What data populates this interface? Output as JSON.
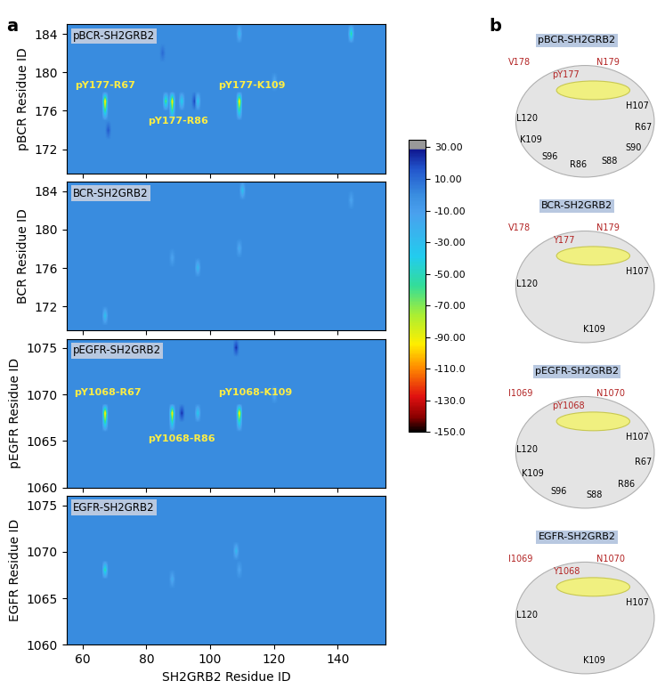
{
  "panel_labels": [
    "a",
    "b"
  ],
  "chart_data": [
    {
      "type": "heatmap",
      "title": "pBCR-SH2GRB2",
      "y_label": "pBCR Residue ID",
      "xlim": [
        55,
        155
      ],
      "xticks": [
        60,
        80,
        100,
        120,
        140
      ],
      "ylim": [
        169.5,
        185
      ],
      "yticks": [
        172,
        176,
        180,
        184
      ],
      "tick_labels": "y",
      "background": 0,
      "cells": [
        {
          "x": 67,
          "y": 177,
          "value": -105
        },
        {
          "x": 67,
          "y": 176,
          "value": -60
        },
        {
          "x": 68,
          "y": 174,
          "value": 15
        },
        {
          "x": 86,
          "y": 177,
          "value": -70
        },
        {
          "x": 88,
          "y": 177,
          "value": -100
        },
        {
          "x": 88,
          "y": 176,
          "value": -55
        },
        {
          "x": 91,
          "y": 177,
          "value": -45
        },
        {
          "x": 95,
          "y": 177,
          "value": 20
        },
        {
          "x": 96,
          "y": 177,
          "value": -40
        },
        {
          "x": 109,
          "y": 177,
          "value": -105
        },
        {
          "x": 109,
          "y": 176,
          "value": -55
        },
        {
          "x": 109,
          "y": 184,
          "value": -30
        },
        {
          "x": 144,
          "y": 184,
          "value": -60
        },
        {
          "x": 120,
          "y": 179,
          "value": -20
        },
        {
          "x": 85,
          "y": 182,
          "value": 10
        }
      ],
      "annotations": [
        {
          "text": "pY177-R67",
          "x": 67,
          "y": 178.6
        },
        {
          "text": "pY177-R86",
          "x": 90,
          "y": 174.9
        },
        {
          "text": "pY177-K109",
          "x": 113,
          "y": 178.6
        }
      ]
    },
    {
      "type": "heatmap",
      "title": "BCR-SH2GRB2",
      "y_label": "BCR Residue ID",
      "xlim": [
        55,
        155
      ],
      "xticks": [
        60,
        80,
        100,
        120,
        140
      ],
      "ylim": [
        169.5,
        185
      ],
      "yticks": [
        172,
        176,
        180,
        184
      ],
      "tick_labels": "y",
      "background": 0,
      "cells": [
        {
          "x": 110,
          "y": 184,
          "value": -35
        },
        {
          "x": 96,
          "y": 176,
          "value": -30
        },
        {
          "x": 67,
          "y": 171,
          "value": -35
        },
        {
          "x": 109,
          "y": 178,
          "value": -20
        },
        {
          "x": 88,
          "y": 177,
          "value": -15
        },
        {
          "x": 144,
          "y": 183,
          "value": -15
        }
      ]
    },
    {
      "type": "heatmap",
      "title": "pEGFR-SH2GRB2",
      "y_label": "pEGFR Residue ID",
      "xlim": [
        55,
        155
      ],
      "xticks": [
        60,
        80,
        100,
        120,
        140
      ],
      "ylim": [
        1060,
        1076
      ],
      "yticks": [
        1060,
        1065,
        1070,
        1075
      ],
      "tick_labels": "y",
      "background": 0,
      "cells": [
        {
          "x": 67,
          "y": 1068,
          "value": -105
        },
        {
          "x": 67,
          "y": 1067,
          "value": -60
        },
        {
          "x": 88,
          "y": 1068,
          "value": -100
        },
        {
          "x": 88,
          "y": 1067,
          "value": -50
        },
        {
          "x": 91,
          "y": 1068,
          "value": 25
        },
        {
          "x": 96,
          "y": 1068,
          "value": -40
        },
        {
          "x": 109,
          "y": 1068,
          "value": -105
        },
        {
          "x": 109,
          "y": 1067,
          "value": -50
        },
        {
          "x": 108,
          "y": 1075,
          "value": 25
        },
        {
          "x": 120,
          "y": 1070,
          "value": -20
        }
      ],
      "annotations": [
        {
          "text": "pY1068-R67",
          "x": 68,
          "y": 1070.2
        },
        {
          "text": "pY1068-R86",
          "x": 91,
          "y": 1065.2
        },
        {
          "text": "pY1068-K109",
          "x": 114,
          "y": 1070.2
        }
      ]
    },
    {
      "type": "heatmap",
      "title": "EGFR-SH2GRB2",
      "y_label": "EGFR Residue ID",
      "x_label": "SH2GRB2 Residue ID",
      "xlim": [
        55,
        155
      ],
      "xticks": [
        60,
        80,
        100,
        120,
        140
      ],
      "ylim": [
        1060,
        1076
      ],
      "yticks": [
        1060,
        1065,
        1070,
        1075
      ],
      "background": 0,
      "cells": [
        {
          "x": 67,
          "y": 1068,
          "value": -60
        },
        {
          "x": 108,
          "y": 1070,
          "value": -30
        },
        {
          "x": 88,
          "y": 1067,
          "value": -20
        },
        {
          "x": 109,
          "y": 1068,
          "value": -15
        }
      ]
    }
  ],
  "colorbar": {
    "range": [
      -150,
      35
    ],
    "ticks": [
      {
        "value": 30,
        "label": "30.00"
      },
      {
        "value": 10,
        "label": "10.00"
      },
      {
        "value": -10,
        "label": "-10.00"
      },
      {
        "value": -30,
        "label": "-30.00"
      },
      {
        "value": -50,
        "label": "-50.00"
      },
      {
        "value": -70,
        "label": "-70.00"
      },
      {
        "value": -90,
        "label": "-90.00"
      },
      {
        "value": -110,
        "label": "-110.0"
      },
      {
        "value": -130,
        "label": "-130.0"
      },
      {
        "value": -150,
        "label": "-150.0"
      }
    ]
  },
  "panel_b": [
    {
      "title": "pBCR-SH2GRB2",
      "peptide_residues": [
        "V178",
        "pY177",
        "N179"
      ],
      "protein_residues": [
        "H107",
        "R67",
        "S90",
        "S88",
        "R86",
        "S96",
        "K109",
        "L120"
      ]
    },
    {
      "title": "BCR-SH2GRB2",
      "peptide_residues": [
        "V178",
        "Y177",
        "N179"
      ],
      "protein_residues": [
        "H107",
        "K109",
        "L120"
      ]
    },
    {
      "title": "pEGFR-SH2GRB2",
      "peptide_residues": [
        "I1069",
        "pY1068",
        "N1070"
      ],
      "protein_residues": [
        "H107",
        "R67",
        "R86",
        "S88",
        "S96",
        "K109",
        "L120"
      ]
    },
    {
      "title": "EGFR-SH2GRB2",
      "peptide_residues": [
        "I1069",
        "Y1068",
        "N1070"
      ],
      "protein_residues": [
        "H107",
        "K109",
        "L120"
      ]
    }
  ]
}
